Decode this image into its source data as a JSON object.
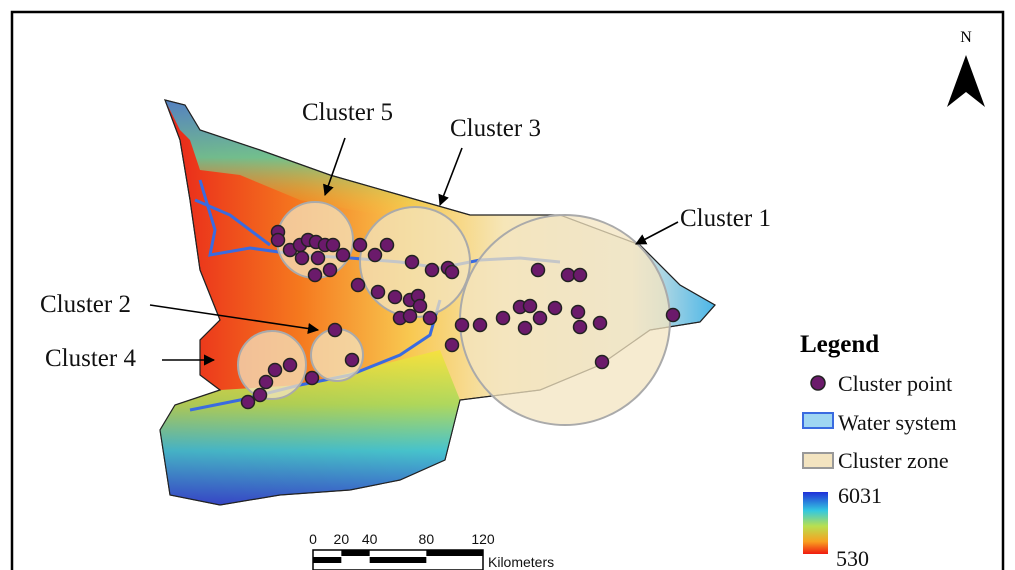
{
  "map": {
    "north": "N",
    "cluster_labels": [
      "Cluster 5",
      "Cluster 3",
      "Cluster 1",
      "Cluster 2",
      "Cluster 4"
    ],
    "legend": {
      "title": "Legend",
      "items": [
        "Cluster point",
        "Water system",
        "Cluster zone"
      ],
      "elevation_max": 6031,
      "elevation_min": 530
    },
    "scale_bar": {
      "ticks": [
        0,
        20,
        40,
        80,
        120
      ],
      "unit": "Kilometers"
    }
  }
}
